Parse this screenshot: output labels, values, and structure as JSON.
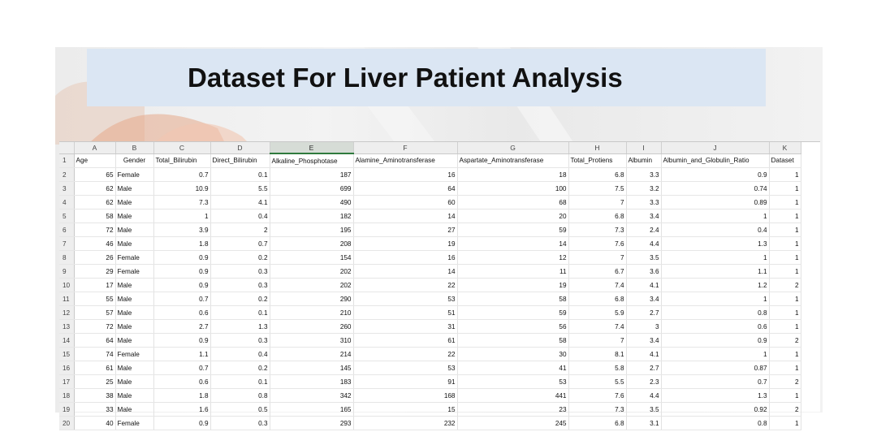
{
  "title": "Dataset For Liver Patient Analysis",
  "columns": [
    "A",
    "B",
    "C",
    "D",
    "E",
    "F",
    "G",
    "H",
    "I",
    "J",
    "K"
  ],
  "selected_column": "E",
  "header_row": [
    "Age",
    "Gender",
    "Total_Bilirubin",
    "Direct_Bilirubin",
    "Alkaline_Phosphotase",
    "Alamine_Aminotransferase",
    "Aspartate_Aminotransferase",
    "Total_Protiens",
    "Albumin",
    "Albumin_and_Globulin_Ratio",
    "Dataset"
  ],
  "rows": [
    [
      "65",
      "Female",
      "0.7",
      "0.1",
      "187",
      "16",
      "18",
      "6.8",
      "3.3",
      "0.9",
      "1"
    ],
    [
      "62",
      "Male",
      "10.9",
      "5.5",
      "699",
      "64",
      "100",
      "7.5",
      "3.2",
      "0.74",
      "1"
    ],
    [
      "62",
      "Male",
      "7.3",
      "4.1",
      "490",
      "60",
      "68",
      "7",
      "3.3",
      "0.89",
      "1"
    ],
    [
      "58",
      "Male",
      "1",
      "0.4",
      "182",
      "14",
      "20",
      "6.8",
      "3.4",
      "1",
      "1"
    ],
    [
      "72",
      "Male",
      "3.9",
      "2",
      "195",
      "27",
      "59",
      "7.3",
      "2.4",
      "0.4",
      "1"
    ],
    [
      "46",
      "Male",
      "1.8",
      "0.7",
      "208",
      "19",
      "14",
      "7.6",
      "4.4",
      "1.3",
      "1"
    ],
    [
      "26",
      "Female",
      "0.9",
      "0.2",
      "154",
      "16",
      "12",
      "7",
      "3.5",
      "1",
      "1"
    ],
    [
      "29",
      "Female",
      "0.9",
      "0.3",
      "202",
      "14",
      "11",
      "6.7",
      "3.6",
      "1.1",
      "1"
    ],
    [
      "17",
      "Male",
      "0.9",
      "0.3",
      "202",
      "22",
      "19",
      "7.4",
      "4.1",
      "1.2",
      "2"
    ],
    [
      "55",
      "Male",
      "0.7",
      "0.2",
      "290",
      "53",
      "58",
      "6.8",
      "3.4",
      "1",
      "1"
    ],
    [
      "57",
      "Male",
      "0.6",
      "0.1",
      "210",
      "51",
      "59",
      "5.9",
      "2.7",
      "0.8",
      "1"
    ],
    [
      "72",
      "Male",
      "2.7",
      "1.3",
      "260",
      "31",
      "56",
      "7.4",
      "3",
      "0.6",
      "1"
    ],
    [
      "64",
      "Male",
      "0.9",
      "0.3",
      "310",
      "61",
      "58",
      "7",
      "3.4",
      "0.9",
      "2"
    ],
    [
      "74",
      "Female",
      "1.1",
      "0.4",
      "214",
      "22",
      "30",
      "8.1",
      "4.1",
      "1",
      "1"
    ],
    [
      "61",
      "Male",
      "0.7",
      "0.2",
      "145",
      "53",
      "41",
      "5.8",
      "2.7",
      "0.87",
      "1"
    ],
    [
      "25",
      "Male",
      "0.6",
      "0.1",
      "183",
      "91",
      "53",
      "5.5",
      "2.3",
      "0.7",
      "2"
    ],
    [
      "38",
      "Male",
      "1.8",
      "0.8",
      "342",
      "168",
      "441",
      "7.6",
      "4.4",
      "1.3",
      "1"
    ],
    [
      "33",
      "Male",
      "1.6",
      "0.5",
      "165",
      "15",
      "23",
      "7.3",
      "3.5",
      "0.92",
      "2"
    ],
    [
      "40",
      "Female",
      "0.9",
      "0.3",
      "293",
      "232",
      "245",
      "6.8",
      "3.1",
      "0.8",
      "1"
    ]
  ]
}
